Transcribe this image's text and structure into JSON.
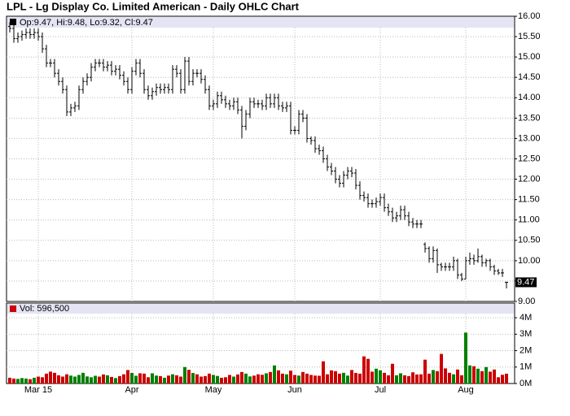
{
  "chart_data": {
    "type": "ohlc",
    "title": "LPL - Lg Display Co. Limited American - Daily OHLC Chart",
    "price_legend": "Op:9.47, Hi:9.48, Lo:9.32, Cl:9.47",
    "volume_legend": "Vol: 596,500",
    "color": "#000000",
    "volume_up_color": "#008000",
    "volume_down_color": "#cc0000",
    "grid": true,
    "categories": [
      null,
      null,
      null,
      null,
      null,
      null,
      null,
      "Mar 15",
      null,
      null,
      null,
      null,
      null,
      null,
      null,
      null,
      null,
      null,
      null,
      null,
      null,
      null,
      null,
      null,
      null,
      null,
      null,
      null,
      null,
      null,
      "Apr",
      null,
      null,
      null,
      null,
      null,
      null,
      null,
      null,
      null,
      null,
      null,
      null,
      null,
      null,
      null,
      null,
      null,
      null,
      null,
      "May",
      null,
      null,
      null,
      null,
      null,
      null,
      null,
      null,
      null,
      null,
      null,
      null,
      null,
      null,
      null,
      null,
      null,
      null,
      null,
      "Jun",
      null,
      null,
      null,
      null,
      null,
      null,
      null,
      null,
      null,
      null,
      null,
      null,
      null,
      null,
      null,
      null,
      null,
      null,
      null,
      null,
      "Jul",
      null,
      null,
      null,
      null,
      null,
      null,
      null,
      null,
      null,
      null,
      null,
      null,
      null,
      null,
      null,
      null,
      null,
      null,
      null,
      null,
      "Aug",
      null,
      null,
      null,
      null,
      null,
      null,
      null,
      null,
      null,
      null
    ],
    "values": [
      [
        15.75,
        15.85,
        15.6,
        15.7
      ],
      [
        15.7,
        15.8,
        15.35,
        15.45
      ],
      [
        15.45,
        15.6,
        15.35,
        15.5
      ],
      [
        15.5,
        15.65,
        15.4,
        15.55
      ],
      [
        15.55,
        15.7,
        15.45,
        15.6
      ],
      [
        15.6,
        15.7,
        15.45,
        15.55
      ],
      [
        15.55,
        15.7,
        15.45,
        15.6
      ],
      [
        15.6,
        15.7,
        15.4,
        15.5
      ],
      [
        15.5,
        15.6,
        15.1,
        15.2
      ],
      [
        15.2,
        15.3,
        14.75,
        14.85
      ],
      [
        14.85,
        14.95,
        14.75,
        14.85
      ],
      [
        14.85,
        14.95,
        14.5,
        14.6
      ],
      [
        14.6,
        14.7,
        14.3,
        14.4
      ],
      [
        14.4,
        14.5,
        14.1,
        14.2
      ],
      [
        14.2,
        14.3,
        13.55,
        13.65
      ],
      [
        13.65,
        13.85,
        13.55,
        13.75
      ],
      [
        13.75,
        13.9,
        13.65,
        13.8
      ],
      [
        13.8,
        14.3,
        13.7,
        14.2
      ],
      [
        14.2,
        14.5,
        14.1,
        14.4
      ],
      [
        14.4,
        14.6,
        14.3,
        14.5
      ],
      [
        14.5,
        14.85,
        14.4,
        14.75
      ],
      [
        14.75,
        14.95,
        14.65,
        14.85
      ],
      [
        14.85,
        14.95,
        14.75,
        14.85
      ],
      [
        14.85,
        14.95,
        14.65,
        14.75
      ],
      [
        14.75,
        14.9,
        14.65,
        14.8
      ],
      [
        14.8,
        14.9,
        14.55,
        14.65
      ],
      [
        14.65,
        14.8,
        14.55,
        14.7
      ],
      [
        14.7,
        14.8,
        14.45,
        14.55
      ],
      [
        14.55,
        14.65,
        14.3,
        14.4
      ],
      [
        14.4,
        14.5,
        14.1,
        14.2
      ],
      [
        14.2,
        14.75,
        14.1,
        14.65
      ],
      [
        14.65,
        14.95,
        14.55,
        14.85
      ],
      [
        14.85,
        14.95,
        14.5,
        14.6
      ],
      [
        14.6,
        14.7,
        14.1,
        14.2
      ],
      [
        14.2,
        14.3,
        13.95,
        14.05
      ],
      [
        14.05,
        14.25,
        13.95,
        14.15
      ],
      [
        14.15,
        14.35,
        14.05,
        14.25
      ],
      [
        14.25,
        14.35,
        14.1,
        14.2
      ],
      [
        14.2,
        14.35,
        14.1,
        14.25
      ],
      [
        14.25,
        14.35,
        14.1,
        14.2
      ],
      [
        14.2,
        14.8,
        14.1,
        14.7
      ],
      [
        14.7,
        14.8,
        14.5,
        14.6
      ],
      [
        14.6,
        14.7,
        14.1,
        14.2
      ],
      [
        14.2,
        15.0,
        14.1,
        14.9
      ],
      [
        14.9,
        15.0,
        14.3,
        14.4
      ],
      [
        14.4,
        14.7,
        14.3,
        14.6
      ],
      [
        14.6,
        14.7,
        14.5,
        14.6
      ],
      [
        14.6,
        14.7,
        14.35,
        14.45
      ],
      [
        14.45,
        14.55,
        14.1,
        14.2
      ],
      [
        14.2,
        14.3,
        13.7,
        13.8
      ],
      [
        13.8,
        13.95,
        13.7,
        13.85
      ],
      [
        13.85,
        14.15,
        13.75,
        14.05
      ],
      [
        14.05,
        14.15,
        13.85,
        13.95
      ],
      [
        13.95,
        14.05,
        13.75,
        13.85
      ],
      [
        13.85,
        13.95,
        13.7,
        13.8
      ],
      [
        13.8,
        14.0,
        13.7,
        13.9
      ],
      [
        13.9,
        14.0,
        13.6,
        13.7
      ],
      [
        13.7,
        13.8,
        13.0,
        13.3
      ],
      [
        13.3,
        13.7,
        13.2,
        13.6
      ],
      [
        13.6,
        14.0,
        13.5,
        13.9
      ],
      [
        13.9,
        14.0,
        13.75,
        13.85
      ],
      [
        13.85,
        13.95,
        13.75,
        13.85
      ],
      [
        13.85,
        13.95,
        13.7,
        13.8
      ],
      [
        13.8,
        14.1,
        13.7,
        14.0
      ],
      [
        14.0,
        14.1,
        13.75,
        13.85
      ],
      [
        13.85,
        14.1,
        13.75,
        14.0
      ],
      [
        14.0,
        14.1,
        13.7,
        13.8
      ],
      [
        13.8,
        13.9,
        13.65,
        13.75
      ],
      [
        13.75,
        13.9,
        13.65,
        13.8
      ],
      [
        13.8,
        13.9,
        13.1,
        13.2
      ],
      [
        13.2,
        13.3,
        13.1,
        13.2
      ],
      [
        13.2,
        13.7,
        13.1,
        13.6
      ],
      [
        13.6,
        13.7,
        13.4,
        13.5
      ],
      [
        13.5,
        13.6,
        12.9,
        13.0
      ],
      [
        13.0,
        13.05,
        12.85,
        12.95
      ],
      [
        12.95,
        13.05,
        12.65,
        12.75
      ],
      [
        12.75,
        12.85,
        12.6,
        12.7
      ],
      [
        12.7,
        12.8,
        12.4,
        12.5
      ],
      [
        12.5,
        12.6,
        12.2,
        12.3
      ],
      [
        12.3,
        12.4,
        12.1,
        12.2
      ],
      [
        12.2,
        12.3,
        11.9,
        12.0
      ],
      [
        12.0,
        12.1,
        11.8,
        11.9
      ],
      [
        11.9,
        12.2,
        11.8,
        12.1
      ],
      [
        12.1,
        12.3,
        12.0,
        12.2
      ],
      [
        12.2,
        12.3,
        12.05,
        12.15
      ],
      [
        12.15,
        12.25,
        11.75,
        11.85
      ],
      [
        11.85,
        11.95,
        11.5,
        11.6
      ],
      [
        11.6,
        11.7,
        11.45,
        11.55
      ],
      [
        11.55,
        11.65,
        11.3,
        11.4
      ],
      [
        11.4,
        11.5,
        11.3,
        11.4
      ],
      [
        11.4,
        11.55,
        11.3,
        11.45
      ],
      [
        11.45,
        11.65,
        11.35,
        11.55
      ],
      [
        11.55,
        11.65,
        11.2,
        11.3
      ],
      [
        11.3,
        11.4,
        11.1,
        11.2
      ],
      [
        11.2,
        11.3,
        10.95,
        11.05
      ],
      [
        11.05,
        11.2,
        10.95,
        11.1
      ],
      [
        11.1,
        11.35,
        11.0,
        11.25
      ],
      [
        11.25,
        11.35,
        11.0,
        11.1
      ],
      [
        11.1,
        11.2,
        10.85,
        10.95
      ],
      [
        10.95,
        11.05,
        10.8,
        10.9
      ],
      [
        10.9,
        11.0,
        10.8,
        10.9
      ],
      [
        10.9,
        11.0,
        10.8,
        10.9
      ],
      [
        10.4,
        10.45,
        10.2,
        10.3
      ],
      [
        10.3,
        10.35,
        9.95,
        10.05
      ],
      [
        10.05,
        10.35,
        9.95,
        10.25
      ],
      [
        10.25,
        10.3,
        9.7,
        9.9
      ],
      [
        9.9,
        9.95,
        9.75,
        9.85
      ],
      [
        9.85,
        9.95,
        9.75,
        9.85
      ],
      [
        9.85,
        9.95,
        9.75,
        9.85
      ],
      [
        9.85,
        10.1,
        9.75,
        10.0
      ],
      [
        10.0,
        10.05,
        9.55,
        9.65
      ],
      [
        9.65,
        9.7,
        9.5,
        9.55
      ],
      [
        9.55,
        10.1,
        9.55,
        10.0
      ],
      [
        10.0,
        10.2,
        9.9,
        10.05
      ],
      [
        10.05,
        10.15,
        9.9,
        10.0
      ],
      [
        10.0,
        10.3,
        9.95,
        10.1
      ],
      [
        10.1,
        10.15,
        9.85,
        9.95
      ],
      [
        9.95,
        10.05,
        9.85,
        10.0
      ],
      [
        10.0,
        10.05,
        9.75,
        9.85
      ],
      [
        9.85,
        9.9,
        9.65,
        9.75
      ],
      [
        9.75,
        9.8,
        9.65,
        9.7
      ],
      [
        9.7,
        9.8,
        9.6,
        9.7
      ],
      [
        9.47,
        9.48,
        9.32,
        9.47
      ]
    ],
    "volume": [
      350000,
      300000,
      280000,
      330000,
      300000,
      260000,
      350000,
      420000,
      380000,
      600000,
      720000,
      650000,
      500000,
      420000,
      560000,
      480000,
      420000,
      520000,
      650000,
      430000,
      380000,
      470000,
      420000,
      550000,
      500000,
      400000,
      330000,
      450000,
      560000,
      820000,
      640000,
      470000,
      620000,
      600000,
      380000,
      620000,
      480000,
      450000,
      350000,
      480000,
      560000,
      500000,
      420000,
      1000000,
      830000,
      640000,
      560000,
      420000,
      450000,
      600000,
      520000,
      460000,
      350000,
      380000,
      520000,
      420000,
      550000,
      700000,
      600000,
      430000,
      480000,
      560000,
      530000,
      620000,
      700000,
      1100000,
      800000,
      600000,
      560000,
      780000,
      520000,
      480000,
      700000,
      600000,
      520000,
      480000,
      470000,
      1350000,
      560000,
      800000,
      750000,
      600000,
      650000,
      480000,
      820000,
      640000,
      600000,
      1650000,
      1500000,
      720000,
      900000,
      800000,
      650000,
      500000,
      1200000,
      500000,
      620000,
      500000,
      450000,
      680000,
      550000,
      560000,
      1450000,
      600000,
      820000,
      750000,
      1800000,
      920000,
      650000,
      560000,
      850000,
      500000,
      3100000,
      1100000,
      1050000,
      900000,
      750000,
      1000000,
      720000,
      850000,
      380000,
      530000,
      596500
    ],
    "ylim": [
      9,
      16
    ],
    "yticks": [
      {
        "value": 9,
        "label": "9.00"
      },
      {
        "value": 9.5,
        "label": "9.50"
      },
      {
        "value": 10,
        "label": "10.00"
      },
      {
        "value": 10.5,
        "label": "10.50"
      },
      {
        "value": 11,
        "label": "11.00"
      },
      {
        "value": 11.5,
        "label": "11.50"
      },
      {
        "value": 12,
        "label": "12.00"
      },
      {
        "value": 12.5,
        "label": "12.50"
      },
      {
        "value": 13,
        "label": "13.00"
      },
      {
        "value": 13.5,
        "label": "13.50"
      },
      {
        "value": 14,
        "label": "14.00"
      },
      {
        "value": 14.5,
        "label": "14.50"
      },
      {
        "value": 15,
        "label": "15.00"
      },
      {
        "value": 15.5,
        "label": "15.50"
      },
      {
        "value": 16,
        "label": "16.00"
      }
    ],
    "volume_ylim": [
      0,
      4400000
    ],
    "volume_yticks": [
      {
        "value": 0,
        "label": "0M"
      },
      {
        "value": 1000000,
        "label": "1M"
      },
      {
        "value": 2000000,
        "label": "2M"
      },
      {
        "value": 3000000,
        "label": "3M"
      },
      {
        "value": 4000000,
        "label": "4M"
      }
    ]
  }
}
